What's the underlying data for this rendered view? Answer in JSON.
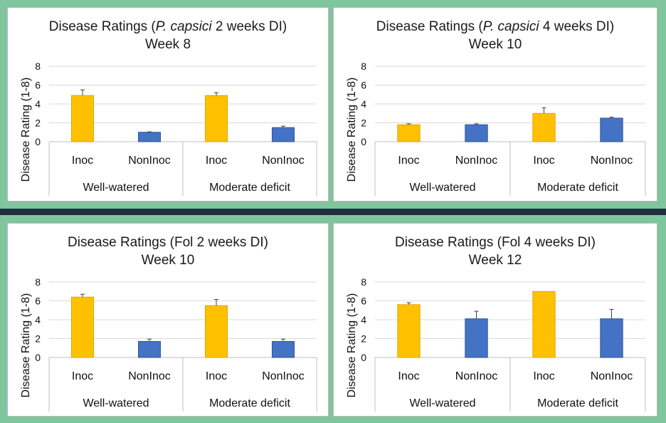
{
  "colors": {
    "inoc": "#ffc000",
    "noninoc": "#4472c4",
    "background": "#7fc59d",
    "divider": "#1f2d3d",
    "errorbar": "#404040"
  },
  "charts": [
    {
      "title_pre": "Disease Ratings (",
      "title_italic": "P. capsici",
      "title_post": " 2 weeks DI)",
      "title_line2": "Week 8"
    },
    {
      "title_pre": "Disease Ratings (",
      "title_italic": "P. capsici",
      "title_post": " 4 weeks DI)",
      "title_line2": "Week 10"
    },
    {
      "title_pre": "Disease Ratings (Fol 2 weeks DI)",
      "title_italic": "",
      "title_post": "",
      "title_line2": "Week 10"
    },
    {
      "title_pre": "Disease Ratings (Fol 4 weeks DI)",
      "title_italic": "",
      "title_post": "",
      "title_line2": "Week 12"
    }
  ],
  "chart_data": [
    {
      "type": "bar",
      "ylabel": "Disease Rating (1-8)",
      "ylim": [
        0,
        8
      ],
      "yticks": [
        0,
        2,
        4,
        6,
        8
      ],
      "grid": true,
      "categories": [
        "Inoc",
        "NonInoc",
        "Inoc",
        "NonInoc"
      ],
      "groups": [
        "Well-watered",
        "Moderate deficit"
      ],
      "values": [
        4.9,
        1.0,
        4.9,
        1.5
      ],
      "errors": [
        0.6,
        0.05,
        0.3,
        0.15
      ]
    },
    {
      "type": "bar",
      "ylabel": "Disease Rating (1-8)",
      "ylim": [
        0,
        8
      ],
      "yticks": [
        0,
        2,
        4,
        6,
        8
      ],
      "grid": true,
      "categories": [
        "Inoc",
        "NonInoc",
        "Inoc",
        "NonInoc"
      ],
      "groups": [
        "Well-watered",
        "Moderate deficit"
      ],
      "values": [
        1.8,
        1.8,
        3.0,
        2.5
      ],
      "errors": [
        0.1,
        0.1,
        0.6,
        0.1
      ]
    },
    {
      "type": "bar",
      "ylabel": "Disease Rating (1-8)",
      "ylim": [
        0,
        8
      ],
      "yticks": [
        0,
        2,
        4,
        6,
        8
      ],
      "grid": true,
      "categories": [
        "Inoc",
        "NonInoc",
        "Inoc",
        "NonInoc"
      ],
      "groups": [
        "Well-watered",
        "Moderate deficit"
      ],
      "values": [
        6.4,
        1.7,
        5.5,
        1.7
      ],
      "errors": [
        0.3,
        0.25,
        0.65,
        0.25
      ]
    },
    {
      "type": "bar",
      "ylabel": "Disease Rating (1-8)",
      "ylim": [
        0,
        8
      ],
      "yticks": [
        0,
        2,
        4,
        6,
        8
      ],
      "grid": true,
      "categories": [
        "Inoc",
        "NonInoc",
        "Inoc",
        "NonInoc"
      ],
      "groups": [
        "Well-watered",
        "Moderate deficit"
      ],
      "values": [
        5.6,
        4.1,
        7.0,
        4.1
      ],
      "errors": [
        0.2,
        0.8,
        0.0,
        1.0
      ]
    }
  ]
}
